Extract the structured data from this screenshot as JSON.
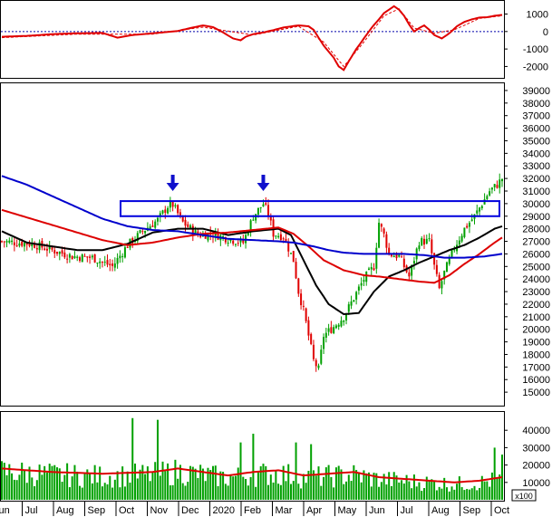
{
  "chart_data": [
    {
      "type": "line",
      "panel": "oscillator",
      "title": "",
      "ylim": [
        -2600,
        1700
      ],
      "y_ticks": [
        "1000",
        "0",
        "-1000",
        "-2000"
      ],
      "zero_line": "dotted blue",
      "series": [
        {
          "color": "#e00000",
          "style": "solid",
          "points": [
            [
              0,
              -300
            ],
            [
              10,
              -250
            ],
            [
              20,
              -150
            ],
            [
              30,
              -100
            ],
            [
              40,
              -80
            ],
            [
              46,
              -350
            ],
            [
              52,
              -200
            ],
            [
              60,
              -100
            ],
            [
              70,
              30
            ],
            [
              75,
              200
            ],
            [
              80,
              350
            ],
            [
              84,
              250
            ],
            [
              88,
              -50
            ],
            [
              92,
              -400
            ],
            [
              95,
              -500
            ],
            [
              97,
              -300
            ],
            [
              100,
              -150
            ],
            [
              104,
              -50
            ],
            [
              108,
              80
            ],
            [
              112,
              230
            ],
            [
              118,
              350
            ],
            [
              122,
              300
            ],
            [
              124,
              100
            ],
            [
              128,
              -800
            ],
            [
              132,
              -1500
            ],
            [
              134,
              -2000
            ],
            [
              136,
              -2200
            ],
            [
              138,
              -1700
            ],
            [
              141,
              -1000
            ],
            [
              144,
              -400
            ],
            [
              147,
              200
            ],
            [
              150,
              700
            ],
            [
              152,
              1050
            ],
            [
              154,
              1250
            ],
            [
              156,
              1450
            ],
            [
              158,
              1250
            ],
            [
              160,
              900
            ],
            [
              162,
              400
            ],
            [
              164,
              0
            ],
            [
              166,
              200
            ],
            [
              168,
              350
            ],
            [
              170,
              100
            ],
            [
              172,
              -200
            ],
            [
              175,
              -400
            ],
            [
              178,
              -100
            ],
            [
              181,
              300
            ],
            [
              184,
              550
            ],
            [
              187,
              700
            ],
            [
              190,
              800
            ],
            [
              193,
              820
            ],
            [
              196,
              900
            ],
            [
              199,
              950
            ]
          ]
        },
        {
          "color": "#e00000",
          "style": "dashed",
          "points": [
            [
              0,
              -350
            ],
            [
              30,
              -150
            ],
            [
              60,
              -150
            ],
            [
              80,
              250
            ],
            [
              100,
              -200
            ],
            [
              118,
              300
            ],
            [
              128,
              -600
            ],
            [
              136,
              -2000
            ],
            [
              144,
              -600
            ],
            [
              152,
              900
            ],
            [
              158,
              1300
            ],
            [
              164,
              200
            ],
            [
              172,
              -100
            ],
            [
              180,
              100
            ],
            [
              190,
              750
            ],
            [
              199,
              900
            ]
          ]
        }
      ]
    },
    {
      "type": "candlestick",
      "panel": "price",
      "title": "",
      "ylim": [
        14000,
        39500
      ],
      "y_ticks": [
        "39000",
        "38000",
        "37000",
        "36000",
        "35000",
        "34000",
        "33000",
        "32000",
        "31000",
        "30000",
        "29000",
        "28000",
        "27000",
        "26000",
        "25000",
        "24000",
        "23000",
        "22000",
        "21000",
        "20000",
        "19000",
        "18000",
        "17000",
        "16000",
        "15000"
      ],
      "x_ticks": [
        "Jun",
        "Jul",
        "Aug",
        "Sep",
        "Oct",
        "Nov",
        "Dec",
        "2020",
        "Feb",
        "Mar",
        "Apr",
        "May",
        "Jun",
        "Jul",
        "Aug",
        "Sep",
        "Oct"
      ],
      "close": [
        [
          0,
          27000
        ],
        [
          12,
          26800
        ],
        [
          20,
          26300
        ],
        [
          28,
          25800
        ],
        [
          36,
          25700
        ],
        [
          44,
          25000
        ],
        [
          50,
          26700
        ],
        [
          56,
          27800
        ],
        [
          62,
          28700
        ],
        [
          66,
          29800
        ],
        [
          68,
          29900
        ],
        [
          72,
          28500
        ],
        [
          78,
          27500
        ],
        [
          84,
          27600
        ],
        [
          90,
          27200
        ],
        [
          96,
          26900
        ],
        [
          100,
          29000
        ],
        [
          104,
          30000
        ],
        [
          106,
          29200
        ],
        [
          108,
          27600
        ],
        [
          112,
          27400
        ],
        [
          116,
          25500
        ],
        [
          118,
          23000
        ],
        [
          120,
          21500
        ],
        [
          122,
          19500
        ],
        [
          124,
          17500
        ],
        [
          126,
          16800
        ],
        [
          128,
          19500
        ],
        [
          132,
          20200
        ],
        [
          136,
          21000
        ],
        [
          140,
          22500
        ],
        [
          144,
          24000
        ],
        [
          148,
          25000
        ],
        [
          150,
          28500
        ],
        [
          152,
          27500
        ],
        [
          154,
          26000
        ],
        [
          158,
          25800
        ],
        [
          162,
          24200
        ],
        [
          166,
          27000
        ],
        [
          170,
          27000
        ],
        [
          172,
          25000
        ],
        [
          174,
          23200
        ],
        [
          176,
          24500
        ],
        [
          180,
          26500
        ],
        [
          184,
          28000
        ],
        [
          188,
          29000
        ],
        [
          191,
          30000
        ],
        [
          194,
          31000
        ],
        [
          197,
          31500
        ],
        [
          199,
          32000
        ]
      ],
      "series": [
        {
          "color": "#000000",
          "points": [
            [
              0,
              27800
            ],
            [
              10,
              26900
            ],
            [
              20,
              26600
            ],
            [
              30,
              26300
            ],
            [
              40,
              26300
            ],
            [
              50,
              26800
            ],
            [
              60,
              27700
            ],
            [
              70,
              28000
            ],
            [
              80,
              28000
            ],
            [
              90,
              27500
            ],
            [
              100,
              27800
            ],
            [
              110,
              28000
            ],
            [
              115,
              27500
            ],
            [
              120,
              25500
            ],
            [
              125,
              23500
            ],
            [
              130,
              22000
            ],
            [
              136,
              21200
            ],
            [
              142,
              21300
            ],
            [
              148,
              23000
            ],
            [
              154,
              24200
            ],
            [
              160,
              24700
            ],
            [
              166,
              25300
            ],
            [
              172,
              25800
            ],
            [
              178,
              26300
            ],
            [
              184,
              26700
            ],
            [
              190,
              27300
            ],
            [
              196,
              28000
            ],
            [
              199,
              28200
            ]
          ]
        },
        {
          "color": "#dd0000",
          "points": [
            [
              0,
              29500
            ],
            [
              10,
              28900
            ],
            [
              20,
              28300
            ],
            [
              30,
              27700
            ],
            [
              40,
              27100
            ],
            [
              50,
              26700
            ],
            [
              60,
              26900
            ],
            [
              70,
              27300
            ],
            [
              80,
              27600
            ],
            [
              90,
              27700
            ],
            [
              100,
              27900
            ],
            [
              110,
              28100
            ],
            [
              116,
              27600
            ],
            [
              122,
              26600
            ],
            [
              128,
              25500
            ],
            [
              136,
              24700
            ],
            [
              144,
              24300
            ],
            [
              150,
              24200
            ],
            [
              158,
              24000
            ],
            [
              166,
              23800
            ],
            [
              172,
              23700
            ],
            [
              178,
              24300
            ],
            [
              184,
              25200
            ],
            [
              190,
              26000
            ],
            [
              196,
              26900
            ],
            [
              199,
              27300
            ]
          ]
        },
        {
          "color": "#0000cc",
          "points": [
            [
              0,
              32200
            ],
            [
              10,
              31500
            ],
            [
              20,
              30600
            ],
            [
              30,
              29700
            ],
            [
              40,
              28800
            ],
            [
              50,
              28200
            ],
            [
              60,
              27900
            ],
            [
              70,
              27800
            ],
            [
              80,
              27500
            ],
            [
              90,
              27200
            ],
            [
              100,
              27100
            ],
            [
              110,
              27000
            ],
            [
              116,
              26900
            ],
            [
              124,
              26600
            ],
            [
              130,
              26300
            ],
            [
              136,
              26100
            ],
            [
              144,
              26000
            ],
            [
              152,
              26000
            ],
            [
              160,
              26000
            ],
            [
              168,
              25900
            ],
            [
              176,
              25700
            ],
            [
              184,
              25700
            ],
            [
              192,
              25800
            ],
            [
              199,
              26000
            ]
          ]
        }
      ],
      "annotations": [
        {
          "kind": "resistance-box",
          "ylow": 29000,
          "yhigh": 30200
        },
        {
          "kind": "arrow",
          "x": 68,
          "y": 31000
        },
        {
          "kind": "arrow",
          "x": 104,
          "y": 31000
        }
      ]
    },
    {
      "type": "bar",
      "panel": "volume",
      "title": "",
      "ylim": [
        0,
        50000
      ],
      "y_ticks": [
        "40000",
        "30000",
        "20000",
        "10000"
      ],
      "unit_label": "x100",
      "volume_avg": [
        [
          0,
          18000
        ],
        [
          20,
          16000
        ],
        [
          40,
          15000
        ],
        [
          60,
          16000
        ],
        [
          70,
          18000
        ],
        [
          80,
          16000
        ],
        [
          90,
          14000
        ],
        [
          100,
          16000
        ],
        [
          110,
          17000
        ],
        [
          120,
          14000
        ],
        [
          130,
          15000
        ],
        [
          140,
          16000
        ],
        [
          150,
          13000
        ],
        [
          160,
          12000
        ],
        [
          170,
          11000
        ],
        [
          180,
          10000
        ],
        [
          190,
          11000
        ],
        [
          199,
          13000
        ]
      ],
      "spikes": [
        [
          52,
          47000
        ],
        [
          62,
          46000
        ],
        [
          95,
          33000
        ],
        [
          100,
          38000
        ],
        [
          117,
          33000
        ],
        [
          123,
          32000
        ],
        [
          196,
          30000
        ],
        [
          199,
          26000
        ]
      ]
    }
  ]
}
